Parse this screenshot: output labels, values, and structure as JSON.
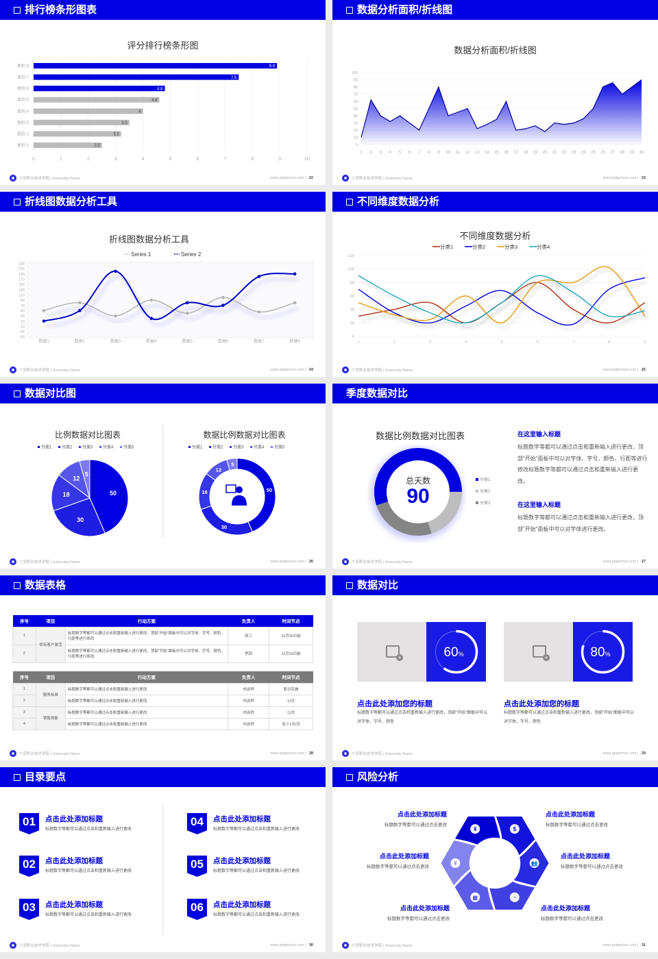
{
  "footer": {
    "school": "六安职业技术学院 | University Name",
    "site": "www.pptgenius.com"
  },
  "colors": {
    "brand": "#0000e0",
    "gray_bar": "#bbbbbb",
    "header_text": "#ffffff"
  },
  "slides": [
    {
      "title": "排行榜条形图表",
      "page": "22"
    },
    {
      "title": "数据分析面积/折线图",
      "page": "23"
    },
    {
      "title": "折线图数据分析工具",
      "page": "24"
    },
    {
      "title": "不同维度数据分析",
      "page": "25"
    },
    {
      "title": "数据对比图",
      "page": "26"
    },
    {
      "title": "季度数据对比",
      "page": "27",
      "blocks": [
        {
          "title": "在这里输入标题",
          "text": "标题数字等都可以通过点击和重新输入进行更改，顶部“开始”面板中可以对字体、字号、颜色、行距等进行修改标题数字等都可以通过点击和重新输入进行更改。"
        },
        {
          "title": "在这里输入标题",
          "text": "标题数字等都可以通过点击和重新输入进行更改，顶部“开始”面板中可以对字体进行更改。"
        }
      ]
    },
    {
      "title": "数据表格",
      "page": "28",
      "headers": [
        "序号",
        "项目",
        "行动方案",
        "负责人",
        "时间节点"
      ],
      "table1": {
        "group": "保有客户激活",
        "rows": [
          {
            "no": "1",
            "action": "标题数字等都可以通过点击和重新输入进行更改，顶部“开始”面板中可以对字体、字号、颜色、行距等进行修改",
            "owner": "张三",
            "time": "11月30日前"
          },
          {
            "no": "2",
            "action": "标题数字等都可以通过点击和重新输入进行更改，顶部“开始”面板中可以对字体、字号、颜色、行距等进行修改",
            "owner": "李四",
            "time": "11月15日前"
          }
        ]
      },
      "table2": {
        "groups": [
          "服务标准",
          "销售技能"
        ],
        "rows": [
          {
            "no": "1",
            "action": "标题数字等都可以通过点击和重新输入进行更改",
            "owner": "内训师",
            "time": "即日实施"
          },
          {
            "no": "2",
            "action": "标题数字等都可以通过点击和重新输入进行更改",
            "owner": "内训师",
            "time": "11月"
          },
          {
            "no": "3",
            "action": "标题数字等都可以通过点击和重新输入进行更改",
            "owner": "内训师",
            "time": "11月"
          },
          {
            "no": "4",
            "action": "标题数字等都可以通过点击和重新输入进行更改",
            "owner": "内训师",
            "time": "至少1次/月"
          }
        ]
      }
    },
    {
      "title": "数据对比",
      "page": "29",
      "cards": [
        {
          "percent": 60,
          "value": "60",
          "unit": "%",
          "title": "点击此处添加您的标题",
          "text": "标题数字等都可以通过点击和重新输入进行更改，顶部“开始”面板中可以对字体、字号、颜色"
        },
        {
          "percent": 80,
          "value": "80",
          "unit": "%",
          "title": "点击此处添加您的标题",
          "text": "标题数字等都可以通过点击和重新输入进行更改，顶部“开始”面板中可以对字体、字号、颜色"
        }
      ]
    },
    {
      "title": "目录要点",
      "page": "30",
      "items": [
        {
          "num": "01",
          "title": "点击此处添加标题",
          "text": "标题数字等都可以通过点击和重新输入进行更改"
        },
        {
          "num": "02",
          "title": "点击此处添加标题",
          "text": "标题数字等都可以通过点击和重新输入进行更改"
        },
        {
          "num": "03",
          "title": "点击此处添加标题",
          "text": "标题数字等都可以通过点击和重新输入进行更改"
        },
        {
          "num": "04",
          "title": "点击此处添加标题",
          "text": "标题数字等都可以通过点击和重新输入进行更改"
        },
        {
          "num": "05",
          "title": "点击此处添加标题",
          "text": "标题数字等都可以通过点击和重新输入进行更改"
        },
        {
          "num": "06",
          "title": "点击此处添加标题",
          "text": "标题数字等都可以通过点击和重新输入进行更改"
        }
      ]
    },
    {
      "title": "风险分析",
      "page": "31",
      "items": [
        {
          "title": "点击此处添加标题",
          "text": "标题数字等都可以通过点击更改",
          "icon": "money-bag-icon"
        },
        {
          "title": "点击此处添加标题",
          "text": "标题数字等都可以通过点击更改",
          "icon": "coins-icon"
        },
        {
          "title": "点击此处添加标题",
          "text": "标题数字等都可以通过点击更改",
          "icon": "people-icon"
        },
        {
          "title": "点击此处添加标题",
          "text": "标题数字等都可以通过点击更改",
          "icon": "pie-chart-icon"
        },
        {
          "title": "点击此处添加标题",
          "text": "标题数字等都可以通过点击更改",
          "icon": "building-icon"
        },
        {
          "title": "点击此处添加标题",
          "text": "标题数字等都可以通过点击更改",
          "icon": "yen-hand-icon"
        }
      ]
    }
  ],
  "chart_data": [
    {
      "type": "bar",
      "orientation": "horizontal",
      "title": "评分排行榜条形图",
      "categories": [
        "类别 1",
        "类别 2",
        "类别 3",
        "类别 4",
        "类别 5",
        "类别 6",
        "类别 7",
        "类别 8"
      ],
      "values": [
        2.5,
        3.2,
        3.5,
        4,
        4.6,
        4.8,
        7.5,
        8.9
      ],
      "highlighted": [
        "类别 6",
        "类别 7",
        "类别 8"
      ],
      "xlim": [
        0,
        10
      ],
      "xticks": [
        0,
        1,
        2,
        3,
        4,
        5,
        6,
        7,
        8,
        9,
        10
      ],
      "grid": true
    },
    {
      "type": "area",
      "title": "数据分析面积/折线图",
      "x": [
        1,
        2,
        3,
        4,
        5,
        6,
        7,
        8,
        9,
        10,
        11,
        12,
        13,
        14,
        15,
        16,
        17,
        18,
        19,
        20,
        21,
        22,
        23,
        24,
        25,
        26,
        27,
        28,
        29,
        30
      ],
      "values": [
        10,
        62,
        40,
        32,
        40,
        30,
        20,
        50,
        80,
        40,
        45,
        50,
        22,
        28,
        35,
        60,
        20,
        22,
        26,
        18,
        30,
        28,
        30,
        36,
        50,
        80,
        86,
        70,
        80,
        90
      ],
      "ylim": [
        0,
        100
      ],
      "yticks": [
        0,
        10,
        20,
        30,
        40,
        50,
        60,
        70,
        80,
        90,
        100
      ]
    },
    {
      "type": "line",
      "title": "折线图数据分析工具",
      "smooth": true,
      "categories": [
        "数据1",
        "数据2",
        "数据3",
        "数据4",
        "数据5",
        "数据6",
        "数据7",
        "数据8"
      ],
      "series": [
        {
          "name": "Series 1",
          "values": [
            50,
            80,
            30,
            90,
            40,
            100,
            45,
            80
          ],
          "color": "#b4b4b4"
        },
        {
          "name": "Series 2",
          "values": [
            10,
            50,
            200,
            20,
            80,
            70,
            180,
            190
          ],
          "color": "#0000c8"
        }
      ],
      "ylim": [
        -50,
        230
      ],
      "yticks": [
        230,
        210,
        190,
        170,
        150,
        130,
        110,
        90,
        70,
        50,
        30,
        10,
        -10,
        -30,
        -50
      ],
      "legend": "top"
    },
    {
      "type": "line",
      "title": "不同维度数据分析",
      "smooth": true,
      "x": [
        1,
        2,
        3,
        4,
        5,
        6,
        7,
        8,
        9
      ],
      "series": [
        {
          "name": "分类1",
          "values": [
            30,
            40,
            50,
            20,
            50,
            80,
            40,
            20,
            50
          ],
          "color": "#b03010"
        },
        {
          "name": "分类2",
          "values": [
            70,
            35,
            20,
            45,
            68,
            35,
            18,
            70,
            87
          ],
          "color": "#0000e0"
        },
        {
          "name": "分类3",
          "values": [
            50,
            32,
            25,
            60,
            20,
            80,
            80,
            102,
            30
          ],
          "color": "#e89a10"
        },
        {
          "name": "分类4",
          "values": [
            90,
            60,
            35,
            20,
            50,
            90,
            65,
            30,
            38
          ],
          "color": "#20a8c0"
        }
      ],
      "ylim": [
        0,
        120
      ],
      "yticks": [
        0,
        20,
        40,
        60,
        80,
        100,
        120
      ],
      "legend": "top"
    },
    {
      "type": "pie",
      "title": "比例数据对比图表",
      "categories": [
        "分类1",
        "分类2",
        "分类3",
        "分类4",
        "分类5"
      ],
      "values": [
        50,
        30,
        18,
        12,
        5
      ],
      "colors": [
        "#0000e0",
        "#1e1ee2",
        "#3636e6",
        "#5656ea",
        "#7c7cef"
      ],
      "legend": "top"
    },
    {
      "type": "pie",
      "donut": true,
      "title": "数据比例数据对比图表",
      "categories": [
        "分类1",
        "分类2",
        "分类3",
        "分类4",
        "分类5"
      ],
      "values": [
        50,
        30,
        18,
        12,
        5
      ],
      "colors": [
        "#0000e0",
        "#1e1ee2",
        "#3636e6",
        "#5656ea",
        "#7c7cef"
      ],
      "legend": "top"
    },
    {
      "type": "pie",
      "donut": true,
      "title": "数据比例数据对比图表",
      "categories": [
        "分类1",
        "分类2",
        "分类3"
      ],
      "values": [
        55,
        20,
        25
      ],
      "colors": [
        "#0000e0",
        "#bdbdbd",
        "#858585"
      ],
      "center_label": "总天数",
      "center_value": "90",
      "legend": "right"
    }
  ]
}
